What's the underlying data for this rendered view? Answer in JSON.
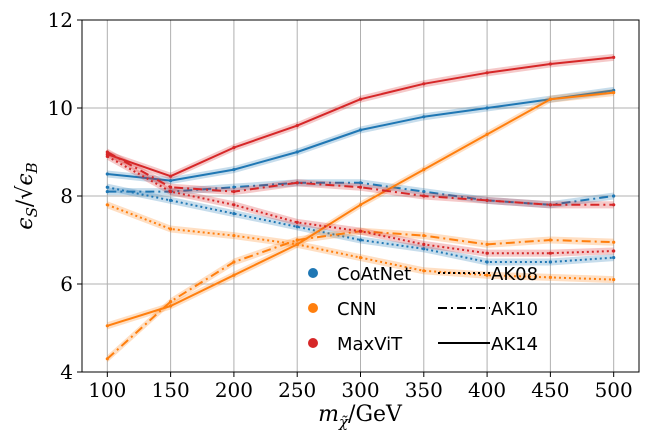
{
  "chart_data": {
    "type": "line",
    "xlabel": "m_χ̃ / GeV",
    "ylabel": "ε_S / √ε_B",
    "xlim": [
      80,
      520
    ],
    "ylim": [
      4,
      12
    ],
    "xticks": [
      "100",
      "150",
      "200",
      "250",
      "300",
      "350",
      "400",
      "450",
      "500"
    ],
    "yticks": [
      "4",
      "6",
      "8",
      "10",
      "12"
    ],
    "grid": true,
    "legend": {
      "placement": "lower-center",
      "models": [
        {
          "label": "CoAtNet",
          "color": "#1f77b4"
        },
        {
          "label": "CNN",
          "color": "#ff7f0e"
        },
        {
          "label": "MaxViT",
          "color": "#d62728"
        }
      ],
      "styles": [
        {
          "label": "AK08",
          "dash": "dotted"
        },
        {
          "label": "AK10",
          "dash": "dashdot"
        },
        {
          "label": "AK14",
          "dash": "solid"
        }
      ]
    },
    "x": [
      100,
      150,
      200,
      250,
      300,
      350,
      400,
      450,
      500
    ],
    "series": [
      {
        "model": "CoAtNet",
        "style": "AK08",
        "color": "#1f77b4",
        "dash": "dotted",
        "values": [
          8.2,
          7.9,
          7.6,
          7.3,
          7.0,
          6.8,
          6.5,
          6.5,
          6.6
        ]
      },
      {
        "model": "CoAtNet",
        "style": "AK10",
        "color": "#1f77b4",
        "dash": "dashdot",
        "values": [
          8.1,
          8.1,
          8.2,
          8.3,
          8.3,
          8.1,
          7.9,
          7.8,
          8.0
        ]
      },
      {
        "model": "CoAtNet",
        "style": "AK14",
        "color": "#1f77b4",
        "dash": "solid",
        "values": [
          8.5,
          8.35,
          8.6,
          9.0,
          9.5,
          9.8,
          10.0,
          10.2,
          10.4
        ]
      },
      {
        "model": "CNN",
        "style": "AK08",
        "color": "#ff7f0e",
        "dash": "dotted",
        "values": [
          7.8,
          7.25,
          7.1,
          6.9,
          6.6,
          6.3,
          6.2,
          6.15,
          6.1
        ]
      },
      {
        "model": "CNN",
        "style": "AK10",
        "color": "#ff7f0e",
        "dash": "dashdot",
        "values": [
          4.3,
          5.6,
          6.5,
          7.0,
          7.2,
          7.1,
          6.9,
          7.0,
          6.95
        ]
      },
      {
        "model": "CNN",
        "style": "AK14",
        "color": "#ff7f0e",
        "dash": "solid",
        "values": [
          5.05,
          5.5,
          6.2,
          6.9,
          7.8,
          8.6,
          9.4,
          10.2,
          10.35
        ]
      },
      {
        "model": "MaxViT",
        "style": "AK08",
        "color": "#d62728",
        "dash": "dotted",
        "values": [
          8.9,
          8.1,
          7.8,
          7.4,
          7.2,
          6.9,
          6.7,
          6.7,
          6.75
        ]
      },
      {
        "model": "MaxViT",
        "style": "AK10",
        "color": "#d62728",
        "dash": "dashdot",
        "values": [
          9.0,
          8.2,
          8.1,
          8.3,
          8.2,
          8.0,
          7.9,
          7.8,
          7.8
        ]
      },
      {
        "model": "MaxViT",
        "style": "AK14",
        "color": "#d62728",
        "dash": "solid",
        "values": [
          8.95,
          8.45,
          9.1,
          9.6,
          10.2,
          10.55,
          10.8,
          11.0,
          11.15
        ]
      }
    ]
  }
}
